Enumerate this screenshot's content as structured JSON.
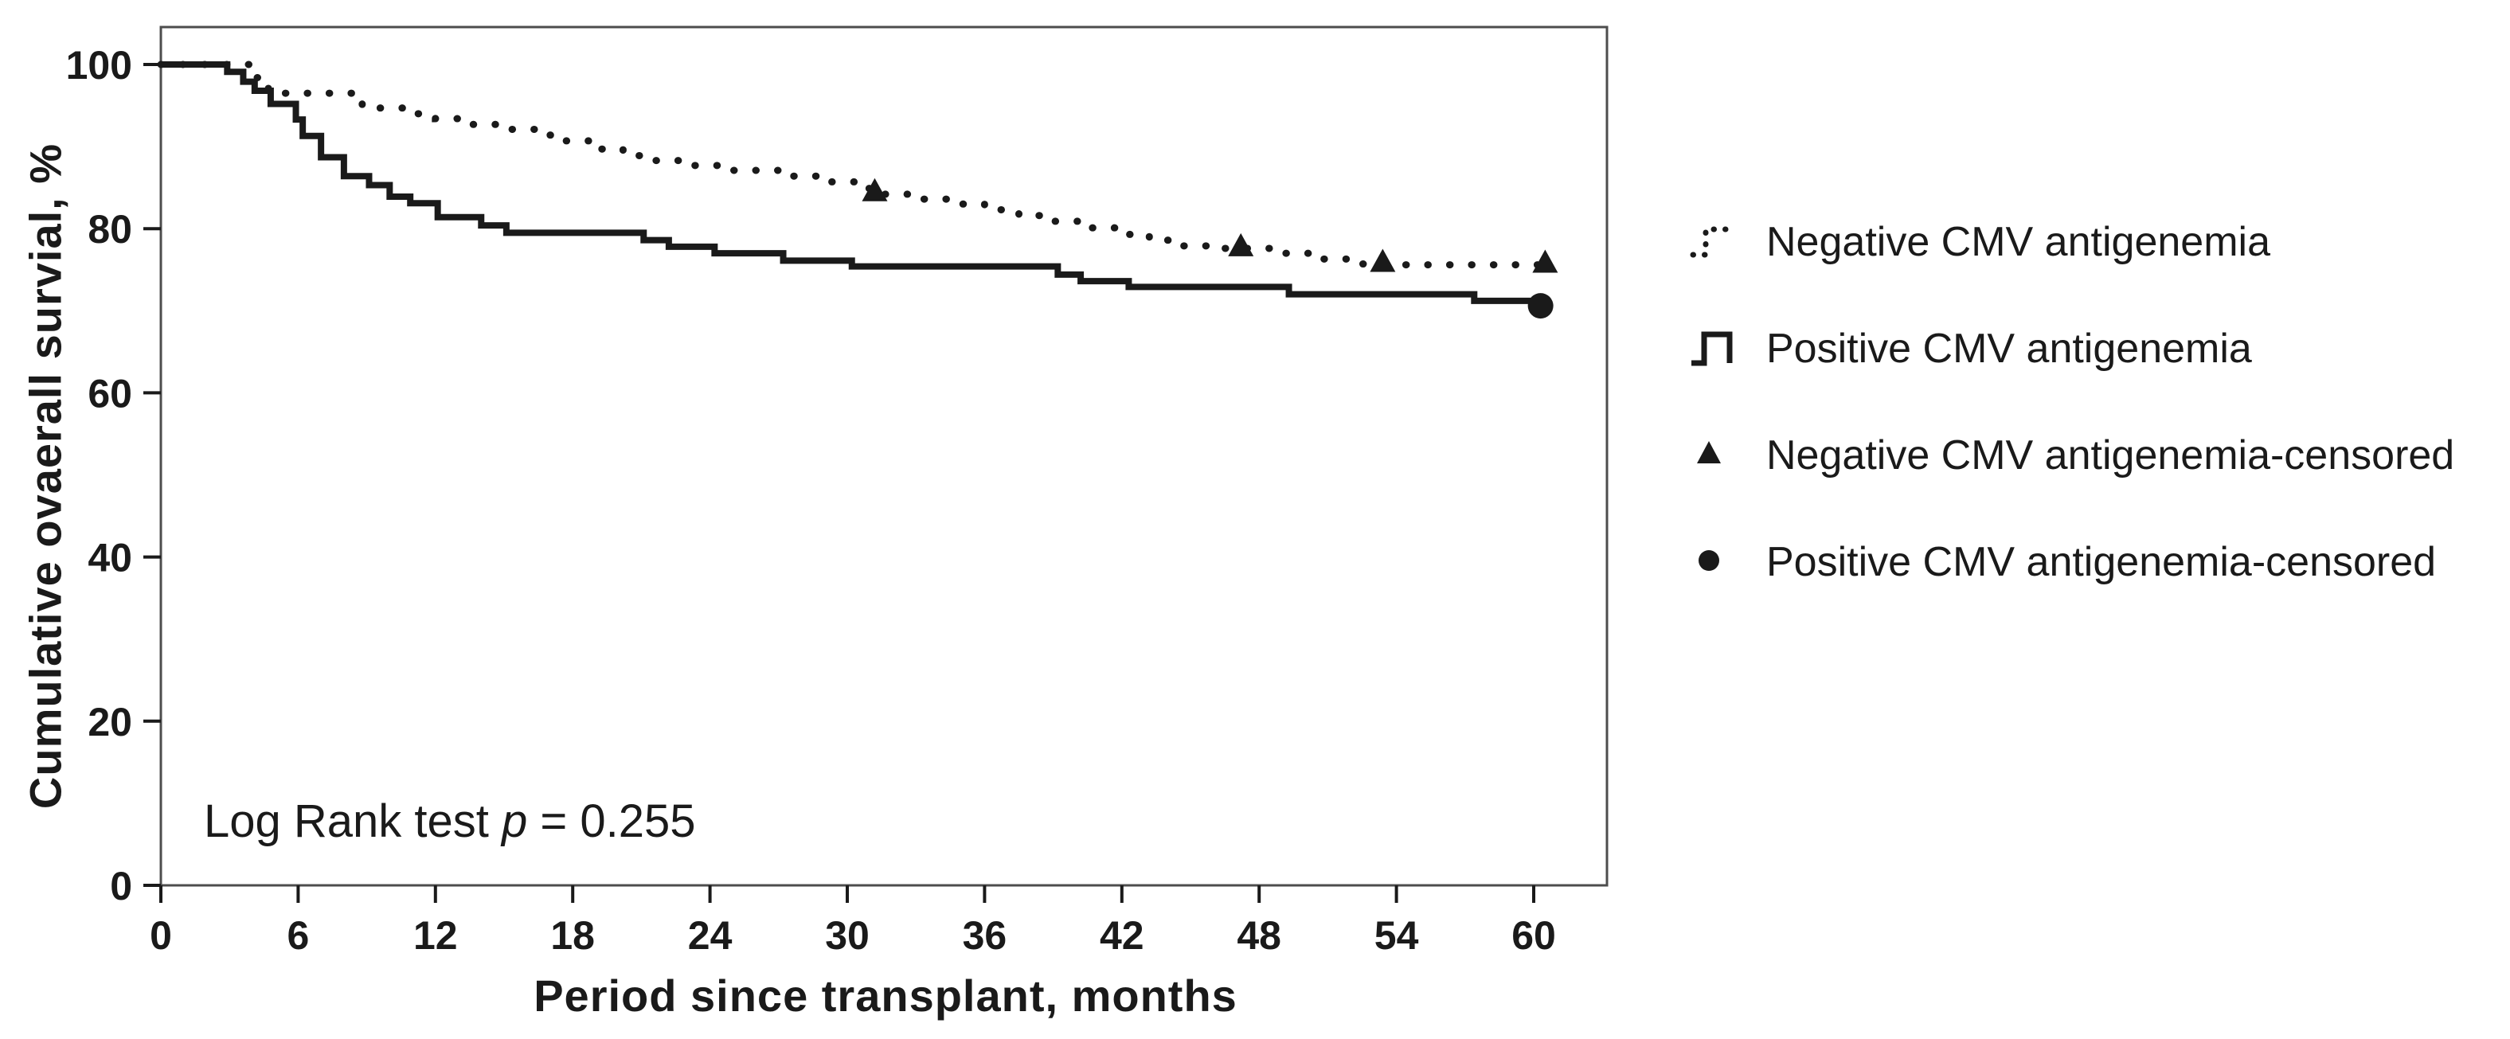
{
  "figure": {
    "background": "#ffffff",
    "ink_color": "#1a1a1a",
    "frame_color": "#4d4d4d"
  },
  "chart_data": {
    "type": "line",
    "subtype": "kaplan-meier-step",
    "title": "",
    "xlabel": "Period since transplant, months",
    "ylabel": "Cumulative ovaerall survial, %",
    "xlim": [
      0,
      63.2
    ],
    "ylim": [
      0,
      104.6
    ],
    "x_ticks": [
      0,
      6,
      12,
      18,
      24,
      30,
      36,
      42,
      48,
      54,
      60
    ],
    "y_ticks": [
      0,
      20,
      40,
      60,
      80,
      100
    ],
    "grid": false,
    "legend_position": "right-outside",
    "annotation": {
      "text_prefix": "Log Rank test ",
      "italic_var": "p",
      "text_suffix": " = 0.255"
    },
    "series": [
      {
        "name": "Negative CMV antigenemia",
        "style": "dotted",
        "color": "#1a1a1a",
        "points": [
          [
            0,
            100
          ],
          [
            3.9,
            98.4
          ],
          [
            4.7,
            96.5
          ],
          [
            8.8,
            94.7
          ],
          [
            10.6,
            94.0
          ],
          [
            12.0,
            93.4
          ],
          [
            13.6,
            92.7
          ],
          [
            15.0,
            92.1
          ],
          [
            16.4,
            91.4
          ],
          [
            17.6,
            90.7
          ],
          [
            19.0,
            89.7
          ],
          [
            20.2,
            88.9
          ],
          [
            21.6,
            88.3
          ],
          [
            23.2,
            87.7
          ],
          [
            25.0,
            87.1
          ],
          [
            27.0,
            86.4
          ],
          [
            28.8,
            85.7
          ],
          [
            30.4,
            84.9
          ],
          [
            31.6,
            84.2
          ],
          [
            33.0,
            83.6
          ],
          [
            34.5,
            83.0
          ],
          [
            36.0,
            82.3
          ],
          [
            37.5,
            81.6
          ],
          [
            39.0,
            80.9
          ],
          [
            40.3,
            80.1
          ],
          [
            41.8,
            79.3
          ],
          [
            43.2,
            78.6
          ],
          [
            44.6,
            77.9
          ],
          [
            46.0,
            77.6
          ],
          [
            48.6,
            77.0
          ],
          [
            50.6,
            76.3
          ],
          [
            52.4,
            75.7
          ],
          [
            53.4,
            75.6
          ],
          [
            60.5,
            75.6
          ]
        ]
      },
      {
        "name": "Positive CMV antigenemia",
        "style": "solid",
        "color": "#1a1a1a",
        "points": [
          [
            0,
            100
          ],
          [
            2.9,
            99.1
          ],
          [
            3.6,
            97.9
          ],
          [
            4.1,
            96.8
          ],
          [
            4.8,
            95.2
          ],
          [
            5.9,
            93.3
          ],
          [
            6.2,
            91.3
          ],
          [
            7.0,
            88.7
          ],
          [
            8.0,
            86.4
          ],
          [
            9.1,
            85.3
          ],
          [
            10.0,
            83.9
          ],
          [
            10.9,
            83.1
          ],
          [
            12.1,
            81.4
          ],
          [
            14.0,
            80.4
          ],
          [
            15.1,
            79.5
          ],
          [
            21.1,
            78.6
          ],
          [
            22.2,
            77.8
          ],
          [
            24.2,
            77.0
          ],
          [
            27.2,
            76.1
          ],
          [
            30.2,
            75.4
          ],
          [
            39.2,
            74.4
          ],
          [
            40.2,
            73.6
          ],
          [
            42.3,
            72.9
          ],
          [
            49.3,
            72.0
          ],
          [
            57.4,
            71.2
          ],
          [
            60.3,
            70.6
          ]
        ]
      }
    ],
    "censored": [
      {
        "name": "Negative CMV antigenemia-censored",
        "marker": "triangle",
        "color": "#1a1a1a",
        "points": [
          [
            31.2,
            84.5
          ],
          [
            47.2,
            77.8
          ],
          [
            53.4,
            75.9
          ],
          [
            60.5,
            75.8
          ]
        ]
      },
      {
        "name": "Positive CMV antigenemia-censored",
        "marker": "circle",
        "color": "#1a1a1a",
        "points": [
          [
            60.3,
            70.6
          ]
        ]
      }
    ],
    "legend": [
      {
        "label": "Negative CMV antigenemia",
        "marker": "dotted-line"
      },
      {
        "label": "Positive CMV antigenemia",
        "marker": "step-line"
      },
      {
        "label": "Negative CMV antigenemia-censored",
        "marker": "triangle"
      },
      {
        "label": "Positive CMV antigenemia-censored",
        "marker": "circle"
      }
    ]
  }
}
